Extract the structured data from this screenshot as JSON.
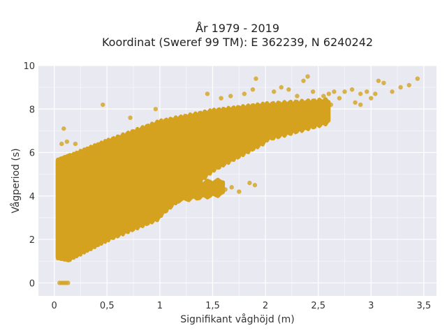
{
  "chart_data": {
    "type": "scatter",
    "title": "År 1979 - 2019",
    "subtitle": "Koordinat (Sweref 99 TM): E 362239, N 6240242",
    "xlabel": "Signifikant våghöjd (m)",
    "ylabel": "Vågperiod (s)",
    "xlim": [
      -0.15,
      3.62
    ],
    "ylim": [
      -0.6,
      10
    ],
    "x_ticks": [
      0,
      0.5,
      1,
      1.5,
      2,
      2.5,
      3,
      3.5
    ],
    "x_tick_labels": [
      "0",
      "0,5",
      "1",
      "1,5",
      "2",
      "2,5",
      "3",
      "3,5"
    ],
    "y_ticks": [
      0,
      2,
      4,
      6,
      8,
      10
    ],
    "y_tick_labels": [
      "0",
      "2",
      "4",
      "6",
      "8",
      "10"
    ],
    "grid": true,
    "marker_color": "#D4A21E",
    "background_color": "#E9E9F2",
    "dense_regions": [
      {
        "x_from": 0.03,
        "x_to": 0.14,
        "y_low": [
          1.2,
          1.1
        ],
        "y_high": [
          5.6,
          5.8
        ]
      },
      {
        "x_from": 0.14,
        "x_to": 0.5,
        "y_low": [
          1.1,
          2.0
        ],
        "y_high": [
          5.8,
          6.5
        ]
      },
      {
        "x_from": 0.5,
        "x_to": 1.0,
        "y_low": [
          2.0,
          3.0
        ],
        "y_high": [
          6.5,
          7.4
        ]
      },
      {
        "x_from": 1.0,
        "x_to": 1.5,
        "y_low": [
          3.1,
          5.2
        ],
        "y_high": [
          7.4,
          7.9
        ]
      },
      {
        "x_from": 1.5,
        "x_to": 2.0,
        "y_low": [
          5.2,
          6.5
        ],
        "y_high": [
          7.9,
          8.2
        ]
      },
      {
        "x_from": 2.0,
        "x_to": 2.6,
        "y_low": [
          6.6,
          7.4
        ],
        "y_high": [
          8.2,
          8.4
        ]
      },
      {
        "x_from": 0.6,
        "x_to": 1.6,
        "y_low": [
          3.4,
          4.1
        ],
        "y_high": [
          4.3,
          4.7
        ]
      }
    ],
    "points": [
      {
        "x": 0.05,
        "y": 0
      },
      {
        "x": 0.07,
        "y": 0
      },
      {
        "x": 0.09,
        "y": 0
      },
      {
        "x": 0.11,
        "y": 0
      },
      {
        "x": 0.13,
        "y": 0
      },
      {
        "x": 0.09,
        "y": 7.1
      },
      {
        "x": 0.07,
        "y": 6.4
      },
      {
        "x": 0.12,
        "y": 6.5
      },
      {
        "x": 0.2,
        "y": 6.4
      },
      {
        "x": 0.05,
        "y": 1.5
      },
      {
        "x": 0.06,
        "y": 1.3
      },
      {
        "x": 0.46,
        "y": 8.2
      },
      {
        "x": 0.72,
        "y": 7.6
      },
      {
        "x": 0.96,
        "y": 8.0
      },
      {
        "x": 1.45,
        "y": 8.7
      },
      {
        "x": 1.58,
        "y": 8.5
      },
      {
        "x": 1.67,
        "y": 8.6
      },
      {
        "x": 1.8,
        "y": 8.7
      },
      {
        "x": 1.88,
        "y": 8.9
      },
      {
        "x": 1.91,
        "y": 9.4
      },
      {
        "x": 2.08,
        "y": 8.8
      },
      {
        "x": 2.15,
        "y": 9.0
      },
      {
        "x": 2.22,
        "y": 8.9
      },
      {
        "x": 2.3,
        "y": 8.6
      },
      {
        "x": 2.36,
        "y": 9.3
      },
      {
        "x": 2.4,
        "y": 9.5
      },
      {
        "x": 2.45,
        "y": 8.8
      },
      {
        "x": 2.55,
        "y": 8.6
      },
      {
        "x": 2.6,
        "y": 8.7
      },
      {
        "x": 2.65,
        "y": 8.8
      },
      {
        "x": 2.7,
        "y": 8.5
      },
      {
        "x": 2.75,
        "y": 8.8
      },
      {
        "x": 2.82,
        "y": 8.9
      },
      {
        "x": 2.85,
        "y": 8.3
      },
      {
        "x": 2.9,
        "y": 8.7
      },
      {
        "x": 2.96,
        "y": 8.8
      },
      {
        "x": 3.0,
        "y": 8.5
      },
      {
        "x": 3.04,
        "y": 8.7
      },
      {
        "x": 3.07,
        "y": 9.3
      },
      {
        "x": 3.12,
        "y": 9.2
      },
      {
        "x": 3.2,
        "y": 8.8
      },
      {
        "x": 3.28,
        "y": 9.0
      },
      {
        "x": 3.36,
        "y": 9.1
      },
      {
        "x": 3.44,
        "y": 9.4
      },
      {
        "x": 2.9,
        "y": 8.2
      },
      {
        "x": 2.62,
        "y": 8.2
      },
      {
        "x": 1.57,
        "y": 4.6
      },
      {
        "x": 1.62,
        "y": 4.3
      },
      {
        "x": 1.85,
        "y": 4.6
      },
      {
        "x": 1.9,
        "y": 4.5
      },
      {
        "x": 1.75,
        "y": 4.2
      },
      {
        "x": 1.68,
        "y": 4.4
      },
      {
        "x": 1.42,
        "y": 4.5
      },
      {
        "x": 1.52,
        "y": 4.4
      },
      {
        "x": 1.62,
        "y": 6.0
      },
      {
        "x": 2.0,
        "y": 6.6
      },
      {
        "x": 1.9,
        "y": 6.8
      },
      {
        "x": 2.35,
        "y": 7.4
      },
      {
        "x": 1.8,
        "y": 6.4
      },
      {
        "x": 1.72,
        "y": 6.2
      }
    ]
  }
}
